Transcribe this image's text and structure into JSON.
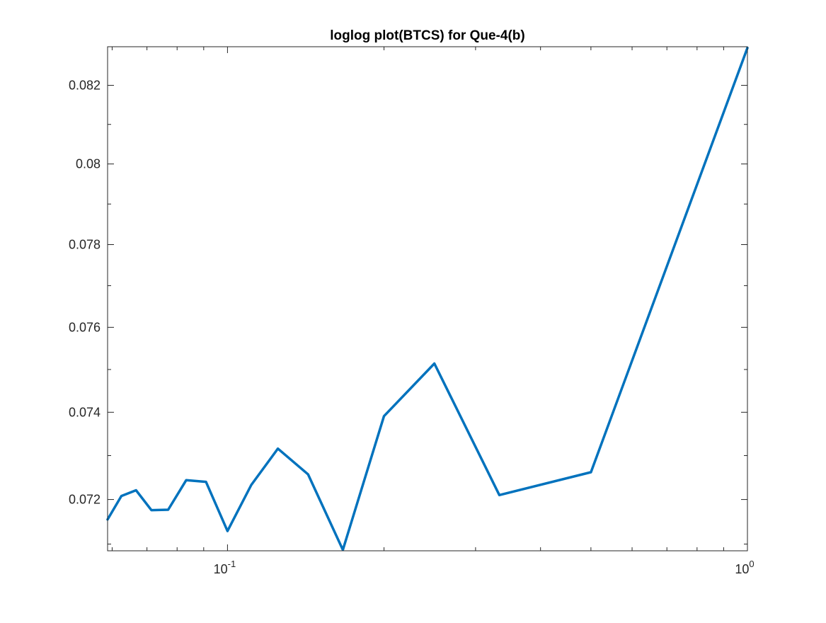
{
  "figure": {
    "background": "#ffffff"
  },
  "chart_data": {
    "type": "line",
    "title": "loglog plot(BTCS) for Que-4(b)",
    "xlabel": "",
    "ylabel": "",
    "xscale": "log",
    "yscale": "log",
    "xlim": [
      0.0588,
      1.0
    ],
    "ylim": [
      0.07085,
      0.083
    ],
    "grid": false,
    "legend": "none",
    "line_color": "#0072BD",
    "x_ticks": [
      {
        "value": 0.1,
        "base": "10",
        "exp": "-1"
      },
      {
        "value": 1.0,
        "base": "10",
        "exp": "0"
      }
    ],
    "x_minor_ticks": [
      0.06,
      0.07,
      0.08,
      0.09,
      0.2,
      0.3,
      0.4,
      0.5,
      0.6,
      0.7,
      0.8,
      0.9
    ],
    "y_ticks": [
      {
        "value": 0.072,
        "label": "0.072"
      },
      {
        "value": 0.074,
        "label": "0.074"
      },
      {
        "value": 0.076,
        "label": "0.076"
      },
      {
        "value": 0.078,
        "label": "0.078"
      },
      {
        "value": 0.08,
        "label": "0.08"
      },
      {
        "value": 0.082,
        "label": "0.082"
      }
    ],
    "y_minor_ticks": [
      0.071,
      0.073,
      0.075,
      0.077,
      0.079,
      0.081
    ],
    "series": [
      {
        "x": [
          0.0588,
          0.0625,
          0.0667,
          0.0714,
          0.0769,
          0.0833,
          0.0909,
          0.1,
          0.1111,
          0.125,
          0.1429,
          0.1667,
          0.2,
          0.25,
          0.3333,
          0.5,
          1.0
        ],
        "y": [
          0.07155,
          0.07208,
          0.07221,
          0.07176,
          0.07177,
          0.07244,
          0.0724,
          0.07129,
          0.07233,
          0.07316,
          0.07257,
          0.07087,
          0.07391,
          0.07514,
          0.0721,
          0.07262,
          0.08297
        ]
      }
    ]
  }
}
